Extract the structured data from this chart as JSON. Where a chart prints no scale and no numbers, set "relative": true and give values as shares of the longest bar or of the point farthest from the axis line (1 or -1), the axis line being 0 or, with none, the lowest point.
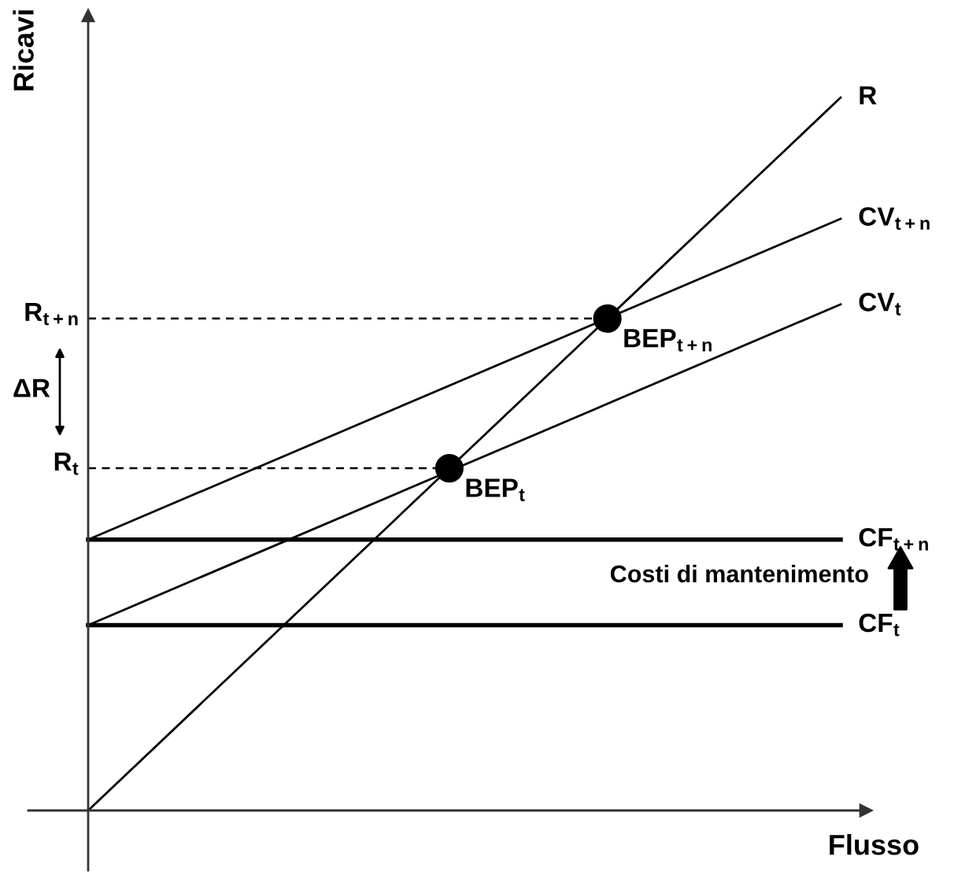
{
  "chart_data": {
    "type": "line",
    "relative": true,
    "xlabel": "Flusso",
    "ylabel": "Ricavi",
    "categories": [
      null,
      null
    ],
    "series": [
      {
        "name": "R",
        "color": "#000000",
        "values": [
          0,
          1
        ]
      },
      {
        "name": "CV$_{t+n}$",
        "color": "#000000",
        "values": [
          0.38,
          0.83
        ]
      },
      {
        "name": "CV$_{t}$",
        "color": "#000000",
        "values": [
          0.26,
          0.71
        ]
      },
      {
        "name": "CF$_{t+n}$",
        "color": "#000000",
        "values": [
          0.38,
          0.38
        ]
      },
      {
        "name": "CF$_{t}$",
        "color": "#000000",
        "values": [
          0.26,
          0.26
        ]
      }
    ],
    "ref_lines": [
      {
        "axis": "y",
        "value": 0.69,
        "label": "R$_{t+n}$",
        "line_style": "dashed",
        "color": "#000000"
      },
      {
        "axis": "y",
        "value": 0.48,
        "label": "R$_{t}$",
        "line_style": "dashed",
        "color": "#000000"
      }
    ],
    "annotations": [
      "BEP$_{t+n}$",
      "BEP$_{t}$",
      "ΔR",
      "Costi di mantenimento"
    ]
  }
}
